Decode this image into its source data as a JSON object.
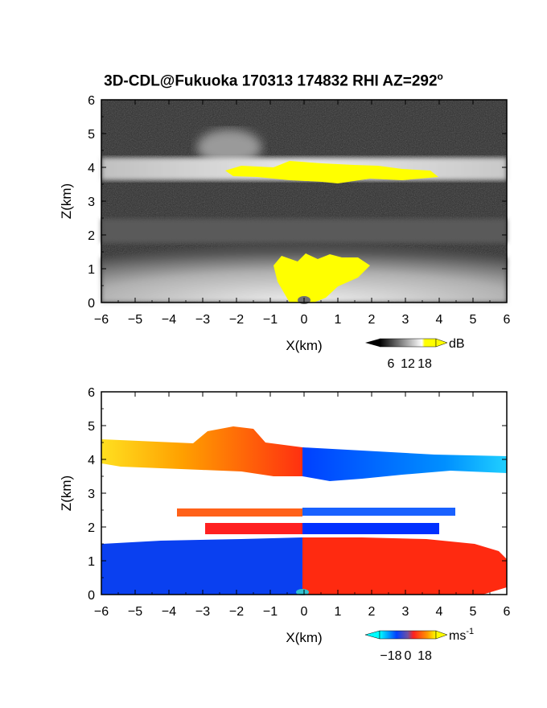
{
  "title": "3D-CDL@Fukuoka 170313 174832 RHI AZ=292",
  "title_sup": "o",
  "chart_data": [
    {
      "type": "heatmap",
      "panel": "reflectivity",
      "xlabel": "X(km)",
      "ylabel": "Z(km)",
      "xlim": [
        -6,
        6
      ],
      "ylim": [
        0,
        6
      ],
      "xticks": [
        -6,
        -5,
        -4,
        -3,
        -2,
        -1,
        0,
        1,
        2,
        3,
        4,
        5,
        6
      ],
      "yticks": [
        0,
        1,
        2,
        3,
        4,
        5,
        6
      ],
      "colorbar": {
        "unit": "dB",
        "ticks": [
          6,
          12,
          18
        ],
        "colors": [
          "#000000",
          "#ffffff",
          "#ffff00"
        ]
      },
      "layers": [
        {
          "name": "cloud top layer",
          "z_range": [
            3.6,
            4.3
          ],
          "x_range": [
            -6,
            6
          ],
          "peak_dB": 18
        },
        {
          "name": "plume",
          "z_range": [
            4.3,
            5.1
          ],
          "x_range": [
            -3.2,
            -1.0
          ],
          "peak_dB": 10
        },
        {
          "name": "mid layer",
          "z_range": [
            2.0,
            2.7
          ],
          "x_range": [
            -6,
            6
          ],
          "peak_dB": 6
        },
        {
          "name": "near-surface",
          "z_range": [
            0,
            1.6
          ],
          "x_range": [
            -6,
            6
          ],
          "peak_dB": 14
        },
        {
          "name": "saturated top",
          "z_range": [
            3.7,
            4.1
          ],
          "x_range": [
            -2.3,
            3.8
          ],
          "peak_dB": 18
        },
        {
          "name": "saturated surface",
          "z_range": [
            0,
            1.5
          ],
          "x_range": [
            -0.8,
            2.1
          ],
          "peak_dB": 18
        }
      ]
    },
    {
      "type": "heatmap",
      "panel": "doppler velocity",
      "xlabel": "X(km)",
      "ylabel": "Z(km)",
      "xlim": [
        -6,
        6
      ],
      "ylim": [
        0,
        6
      ],
      "xticks": [
        -6,
        -5,
        -4,
        -3,
        -2,
        -1,
        0,
        1,
        2,
        3,
        4,
        5,
        6
      ],
      "yticks": [
        0,
        1,
        2,
        3,
        4,
        5,
        6
      ],
      "colorbar": {
        "unit": "ms",
        "unit_sup": "-1",
        "ticks": [
          "−18",
          "0",
          "18"
        ],
        "colors": [
          "#00ffff",
          "#0040ff",
          "#ff2020",
          "#ffff00"
        ]
      },
      "layers": [
        {
          "name": "upper layer west",
          "z_range": [
            3.7,
            4.4
          ],
          "x_range": [
            -6,
            0
          ],
          "velocity": 12
        },
        {
          "name": "upper layer plume",
          "z_range": [
            4.4,
            5.0
          ],
          "x_range": [
            -3.0,
            -1.0
          ],
          "velocity": 8
        },
        {
          "name": "upper layer east",
          "z_range": [
            3.5,
            4.3
          ],
          "x_range": [
            0,
            6
          ],
          "velocity": -10
        },
        {
          "name": "mid streak 1",
          "z_range": [
            2.2,
            2.5
          ],
          "x_range": [
            -3.8,
            4.5
          ],
          "velocity": 0
        },
        {
          "name": "mid streak 2",
          "z_range": [
            1.8,
            2.1
          ],
          "x_range": [
            -3.0,
            4.0
          ],
          "velocity": 0
        },
        {
          "name": "boundary layer west",
          "z_range": [
            0,
            1.6
          ],
          "x_range": [
            -6,
            0
          ],
          "velocity": -14
        },
        {
          "name": "boundary layer east",
          "z_range": [
            0,
            1.6
          ],
          "x_range": [
            0,
            6
          ],
          "velocity": 6
        }
      ]
    }
  ]
}
